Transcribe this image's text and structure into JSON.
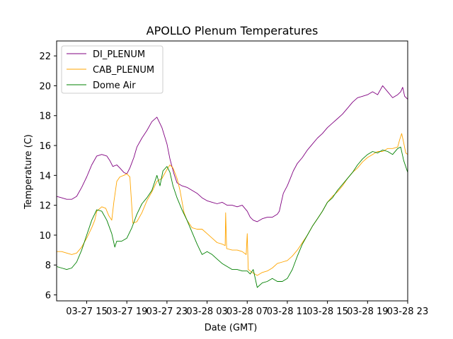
{
  "chart_data": {
    "type": "line",
    "title": "APOLLO Plenum Temperatures",
    "xlabel": "Date (GMT)",
    "ylabel": "Temperature (C)",
    "xlim": [
      12.0,
      47.0
    ],
    "ylim": [
      5.6,
      23.0
    ],
    "x_unit": "hours since 03-27 00:00 GMT",
    "xticks": [
      {
        "value": 15,
        "label": "03-27 15"
      },
      {
        "value": 19,
        "label": "03-27 19"
      },
      {
        "value": 23,
        "label": "03-27 23"
      },
      {
        "value": 27,
        "label": "03-28 03"
      },
      {
        "value": 31,
        "label": "03-28 07"
      },
      {
        "value": 35,
        "label": "03-28 11"
      },
      {
        "value": 39,
        "label": "03-28 15"
      },
      {
        "value": 43,
        "label": "03-28 19"
      },
      {
        "value": 47,
        "label": "03-28 23"
      }
    ],
    "yticks": [
      6,
      8,
      10,
      12,
      14,
      16,
      18,
      20,
      22
    ],
    "grid": false,
    "legend_position": "top-left",
    "series": [
      {
        "name": "DI_PLENUM",
        "color": "#800080",
        "x": [
          12.0,
          12.5,
          13.0,
          13.5,
          14.0,
          14.5,
          15.0,
          15.5,
          16.0,
          16.5,
          17.0,
          17.3,
          17.6,
          18.0,
          18.3,
          18.7,
          19.0,
          19.3,
          19.7,
          20.0,
          20.5,
          21.0,
          21.5,
          22.0,
          22.5,
          23.0,
          23.3,
          23.7,
          24.0,
          24.5,
          25.0,
          25.5,
          26.0,
          26.5,
          27.0,
          27.5,
          28.0,
          28.5,
          29.0,
          29.5,
          30.0,
          30.5,
          31.0,
          31.3,
          31.6,
          32.0,
          32.5,
          33.0,
          33.5,
          34.0,
          34.2,
          34.4,
          34.6,
          35.0,
          35.3,
          35.6,
          36.0,
          36.5,
          37.0,
          37.5,
          38.0,
          38.5,
          39.0,
          39.5,
          40.0,
          40.5,
          41.0,
          41.5,
          42.0,
          42.5,
          43.0,
          43.5,
          44.0,
          44.5,
          45.0,
          45.5,
          46.0,
          46.3,
          46.5,
          46.7,
          47.0
        ],
        "y": [
          12.6,
          12.5,
          12.4,
          12.4,
          12.6,
          13.2,
          13.9,
          14.7,
          15.3,
          15.4,
          15.3,
          15.0,
          14.6,
          14.7,
          14.5,
          14.2,
          14.1,
          14.5,
          15.2,
          15.9,
          16.5,
          17.0,
          17.6,
          17.9,
          17.2,
          16.1,
          15.1,
          14.1,
          13.5,
          13.3,
          13.2,
          13.0,
          12.8,
          12.5,
          12.3,
          12.2,
          12.1,
          12.2,
          12.0,
          12.0,
          11.9,
          12.0,
          11.6,
          11.2,
          11.0,
          10.9,
          11.1,
          11.2,
          11.2,
          11.4,
          11.6,
          12.2,
          12.8,
          13.3,
          13.8,
          14.3,
          14.8,
          15.2,
          15.7,
          16.1,
          16.5,
          16.8,
          17.2,
          17.5,
          17.8,
          18.1,
          18.5,
          18.9,
          19.2,
          19.3,
          19.4,
          19.6,
          19.4,
          20.0,
          19.6,
          19.2,
          19.4,
          19.6,
          19.9,
          19.3,
          19.1
        ]
      },
      {
        "name": "CAB_PLENUM",
        "color": "#ffa500",
        "x": [
          12.0,
          12.5,
          13.0,
          13.5,
          14.0,
          14.5,
          15.0,
          15.5,
          15.8,
          16.0,
          16.5,
          16.9,
          17.2,
          17.5,
          17.7,
          18.0,
          18.3,
          18.7,
          19.0,
          19.3,
          19.6,
          20.0,
          20.5,
          21.0,
          21.5,
          22.0,
          22.5,
          23.0,
          23.3,
          23.6,
          24.0,
          24.3,
          24.7,
          25.0,
          25.5,
          26.0,
          26.5,
          27.0,
          27.5,
          28.0,
          28.5,
          28.8,
          28.85,
          28.95,
          29.5,
          30.0,
          30.5,
          30.9,
          31.0,
          31.1,
          31.5,
          32.0,
          32.5,
          33.0,
          33.5,
          34.0,
          34.5,
          35.0,
          35.5,
          36.0,
          36.5,
          37.0,
          37.5,
          38.0,
          38.5,
          39.0,
          39.5,
          40.0,
          40.5,
          41.0,
          41.5,
          42.0,
          42.5,
          43.0,
          43.5,
          44.0,
          44.5,
          45.0,
          45.5,
          46.0,
          46.2,
          46.4,
          46.6,
          46.8,
          47.0
        ],
        "y": [
          8.9,
          8.9,
          8.8,
          8.7,
          8.8,
          9.2,
          9.8,
          10.5,
          11.0,
          11.6,
          11.9,
          11.8,
          11.3,
          11.0,
          12.2,
          13.6,
          13.9,
          14.0,
          14.1,
          13.9,
          10.8,
          10.9,
          11.5,
          12.3,
          12.9,
          13.6,
          13.8,
          14.4,
          14.7,
          14.5,
          13.8,
          13.0,
          11.5,
          11.0,
          10.5,
          10.4,
          10.4,
          10.1,
          9.8,
          9.5,
          9.4,
          9.3,
          11.5,
          9.1,
          9.0,
          9.0,
          8.9,
          8.7,
          10.1,
          7.7,
          7.5,
          7.3,
          7.5,
          7.6,
          7.8,
          8.1,
          8.2,
          8.3,
          8.6,
          9.0,
          9.5,
          10.0,
          10.6,
          11.1,
          11.6,
          12.2,
          12.6,
          12.9,
          13.3,
          13.8,
          14.2,
          14.5,
          14.9,
          15.2,
          15.4,
          15.6,
          15.6,
          15.8,
          15.8,
          15.9,
          16.4,
          16.8,
          16.2,
          15.5,
          15.4
        ]
      },
      {
        "name": "Dome Air",
        "color": "#008000",
        "x": [
          12.0,
          12.5,
          13.0,
          13.5,
          14.0,
          14.5,
          15.0,
          15.5,
          16.0,
          16.5,
          17.0,
          17.5,
          17.8,
          18.0,
          18.5,
          19.0,
          19.5,
          20.0,
          20.5,
          21.0,
          21.5,
          22.0,
          22.3,
          22.6,
          23.0,
          23.3,
          23.6,
          24.0,
          24.5,
          25.0,
          25.5,
          26.0,
          26.5,
          27.0,
          27.5,
          28.0,
          28.5,
          29.0,
          29.5,
          30.0,
          30.5,
          31.0,
          31.3,
          31.6,
          32.0,
          32.5,
          33.0,
          33.5,
          34.0,
          34.5,
          35.0,
          35.5,
          36.0,
          36.5,
          37.0,
          37.5,
          38.0,
          38.5,
          39.0,
          39.5,
          40.0,
          40.5,
          41.0,
          41.5,
          42.0,
          42.5,
          43.0,
          43.5,
          44.0,
          44.5,
          45.0,
          45.5,
          46.0,
          46.3,
          46.6,
          47.0
        ],
        "y": [
          7.9,
          7.8,
          7.7,
          7.8,
          8.2,
          9.0,
          10.0,
          11.0,
          11.7,
          11.6,
          11.0,
          10.1,
          9.2,
          9.6,
          9.6,
          9.8,
          10.5,
          11.4,
          12.1,
          12.5,
          13.0,
          14.0,
          13.3,
          14.3,
          14.6,
          14.2,
          13.3,
          12.5,
          11.7,
          11.0,
          10.2,
          9.4,
          8.7,
          8.9,
          8.7,
          8.4,
          8.1,
          7.9,
          7.7,
          7.7,
          7.6,
          7.6,
          7.4,
          7.7,
          6.5,
          6.8,
          6.9,
          7.1,
          6.9,
          6.9,
          7.1,
          7.7,
          8.6,
          9.4,
          10.0,
          10.6,
          11.1,
          11.6,
          12.2,
          12.5,
          13.0,
          13.4,
          13.8,
          14.2,
          14.7,
          15.1,
          15.4,
          15.6,
          15.5,
          15.7,
          15.6,
          15.4,
          15.8,
          15.9,
          15.0,
          14.2
        ]
      }
    ]
  }
}
